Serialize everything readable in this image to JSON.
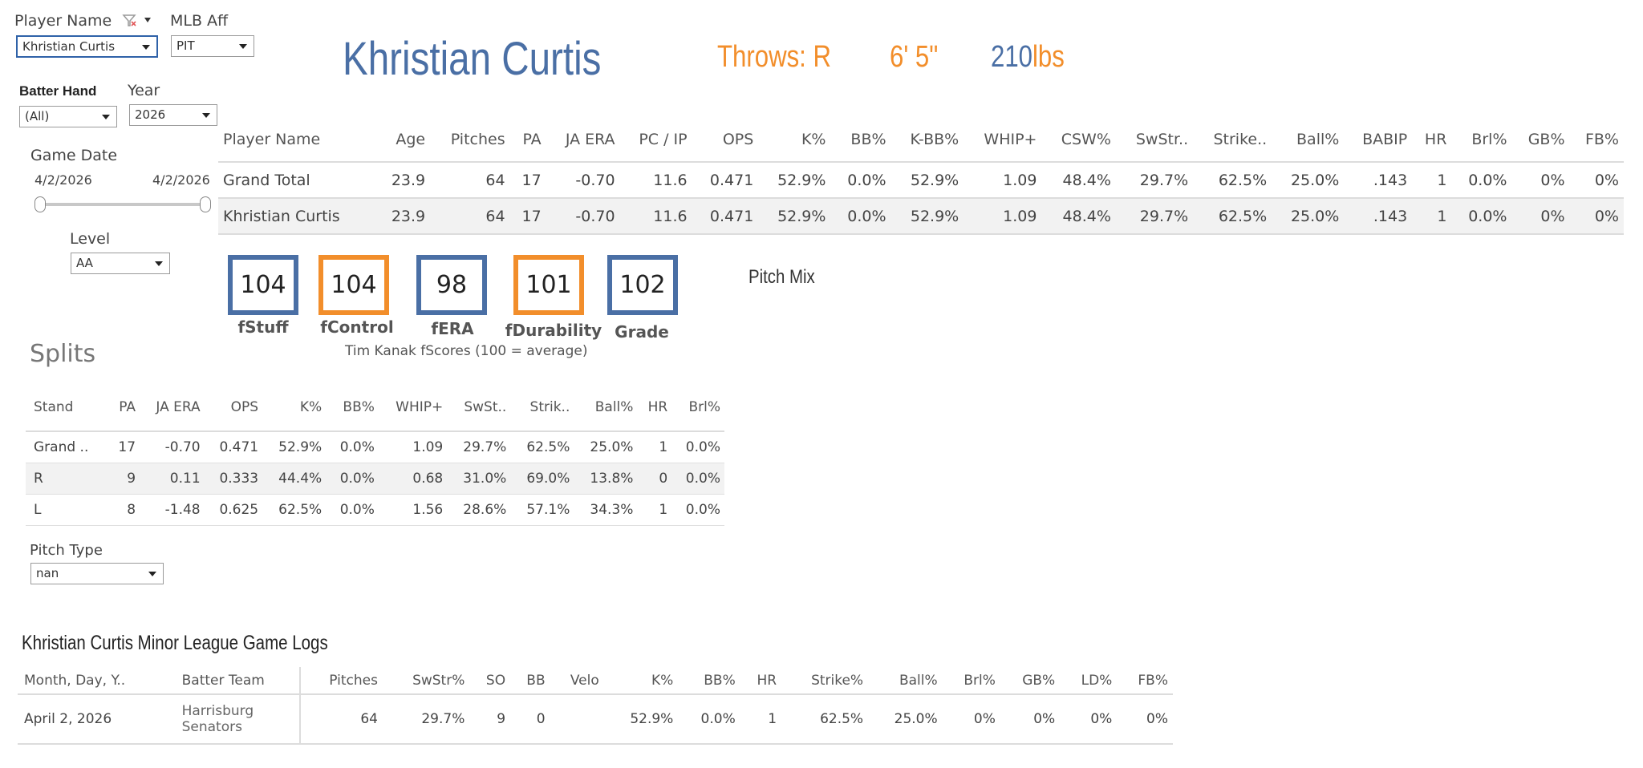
{
  "filters": {
    "player_name": {
      "label": "Player Name",
      "value": "Khristian Curtis"
    },
    "mlb_aff": {
      "label": "MLB Aff",
      "value": "PIT"
    },
    "batter_hand": {
      "label": "Batter Hand",
      "value": "(All)"
    },
    "year": {
      "label": "Year",
      "value": "2026"
    },
    "game_date": {
      "label": "Game Date",
      "start": "4/2/2026",
      "end": "4/2/2026"
    },
    "level": {
      "label": "Level",
      "value": "AA"
    },
    "pitch_type": {
      "label": "Pitch Type",
      "value": "nan"
    }
  },
  "header": {
    "name": "Khristian Curtis",
    "throws": "Throws: R",
    "height": "6' 5\"",
    "weight_value": "210",
    "weight_unit": "lbs"
  },
  "main_table": {
    "columns": [
      "Player Name",
      "Age",
      "Pitches",
      "PA",
      "JA ERA",
      "PC / IP",
      "OPS",
      "K%",
      "BB%",
      "K-BB%",
      "WHIP+",
      "CSW%",
      "SwStr..",
      "Strike..",
      "Ball%",
      "BABIP",
      "HR",
      "Brl%",
      "GB%",
      "FB%"
    ],
    "rows": [
      [
        "Grand Total",
        "23.9",
        "64",
        "17",
        "-0.70",
        "11.6",
        "0.471",
        "52.9%",
        "0.0%",
        "52.9%",
        "1.09",
        "48.4%",
        "29.7%",
        "62.5%",
        "25.0%",
        ".143",
        "1",
        "0.0%",
        "0%",
        "0%"
      ],
      [
        "Khristian Curtis",
        "23.9",
        "64",
        "17",
        "-0.70",
        "11.6",
        "0.471",
        "52.9%",
        "0.0%",
        "52.9%",
        "1.09",
        "48.4%",
        "29.7%",
        "62.5%",
        "25.0%",
        ".143",
        "1",
        "0.0%",
        "0%",
        "0%"
      ]
    ]
  },
  "fscores": {
    "items": [
      {
        "value": "104",
        "label": "fStuff",
        "color": "#4a6fa5"
      },
      {
        "value": "104",
        "label": "fControl",
        "color": "#f28e2b"
      },
      {
        "value": "98",
        "label": "fERA",
        "color": "#4a6fa5"
      },
      {
        "value": "101",
        "label": "fDurability",
        "color": "#f28e2b"
      },
      {
        "value": "102",
        "label": "Grade",
        "color": "#4a6fa5"
      }
    ],
    "caption": "Tim Kanak fScores (100 = average)"
  },
  "pitch_mix": {
    "title": "Pitch Mix"
  },
  "splits": {
    "title": "Splits",
    "columns": [
      "Stand",
      "PA",
      "JA ERA",
      "OPS",
      "K%",
      "BB%",
      "WHIP+",
      "SwSt..",
      "Strik..",
      "Ball%",
      "HR",
      "Brl%"
    ],
    "rows": [
      [
        "Grand ..",
        "17",
        "-0.70",
        "0.471",
        "52.9%",
        "0.0%",
        "1.09",
        "29.7%",
        "62.5%",
        "25.0%",
        "1",
        "0.0%"
      ],
      [
        "R",
        "9",
        "0.11",
        "0.333",
        "44.4%",
        "0.0%",
        "0.68",
        "31.0%",
        "69.0%",
        "13.8%",
        "0",
        "0.0%"
      ],
      [
        "L",
        "8",
        "-1.48",
        "0.625",
        "62.5%",
        "0.0%",
        "1.56",
        "28.6%",
        "57.1%",
        "34.3%",
        "1",
        "0.0%"
      ]
    ]
  },
  "game_logs": {
    "title": "Khristian Curtis Minor League Game Logs",
    "columns": [
      "Month, Day, Y..",
      "Batter Team",
      "Pitches",
      "SwStr%",
      "SO",
      "BB",
      "Velo",
      "K%",
      "BB%",
      "HR",
      "Strike%",
      "Ball%",
      "Brl%",
      "GB%",
      "LD%",
      "FB%"
    ],
    "rows": [
      [
        "April 2, 2026",
        "Harrisburg Senators",
        "64",
        "29.7%",
        "9",
        "0",
        "",
        "52.9%",
        "0.0%",
        "1",
        "62.5%",
        "25.0%",
        "0%",
        "0%",
        "0%",
        "0%"
      ]
    ]
  },
  "colors": {
    "blue": "#4a6fa5",
    "orange": "#f28e2b"
  },
  "icons": {
    "filter": "filter-clear-icon",
    "caret": "chevron-down-icon"
  }
}
